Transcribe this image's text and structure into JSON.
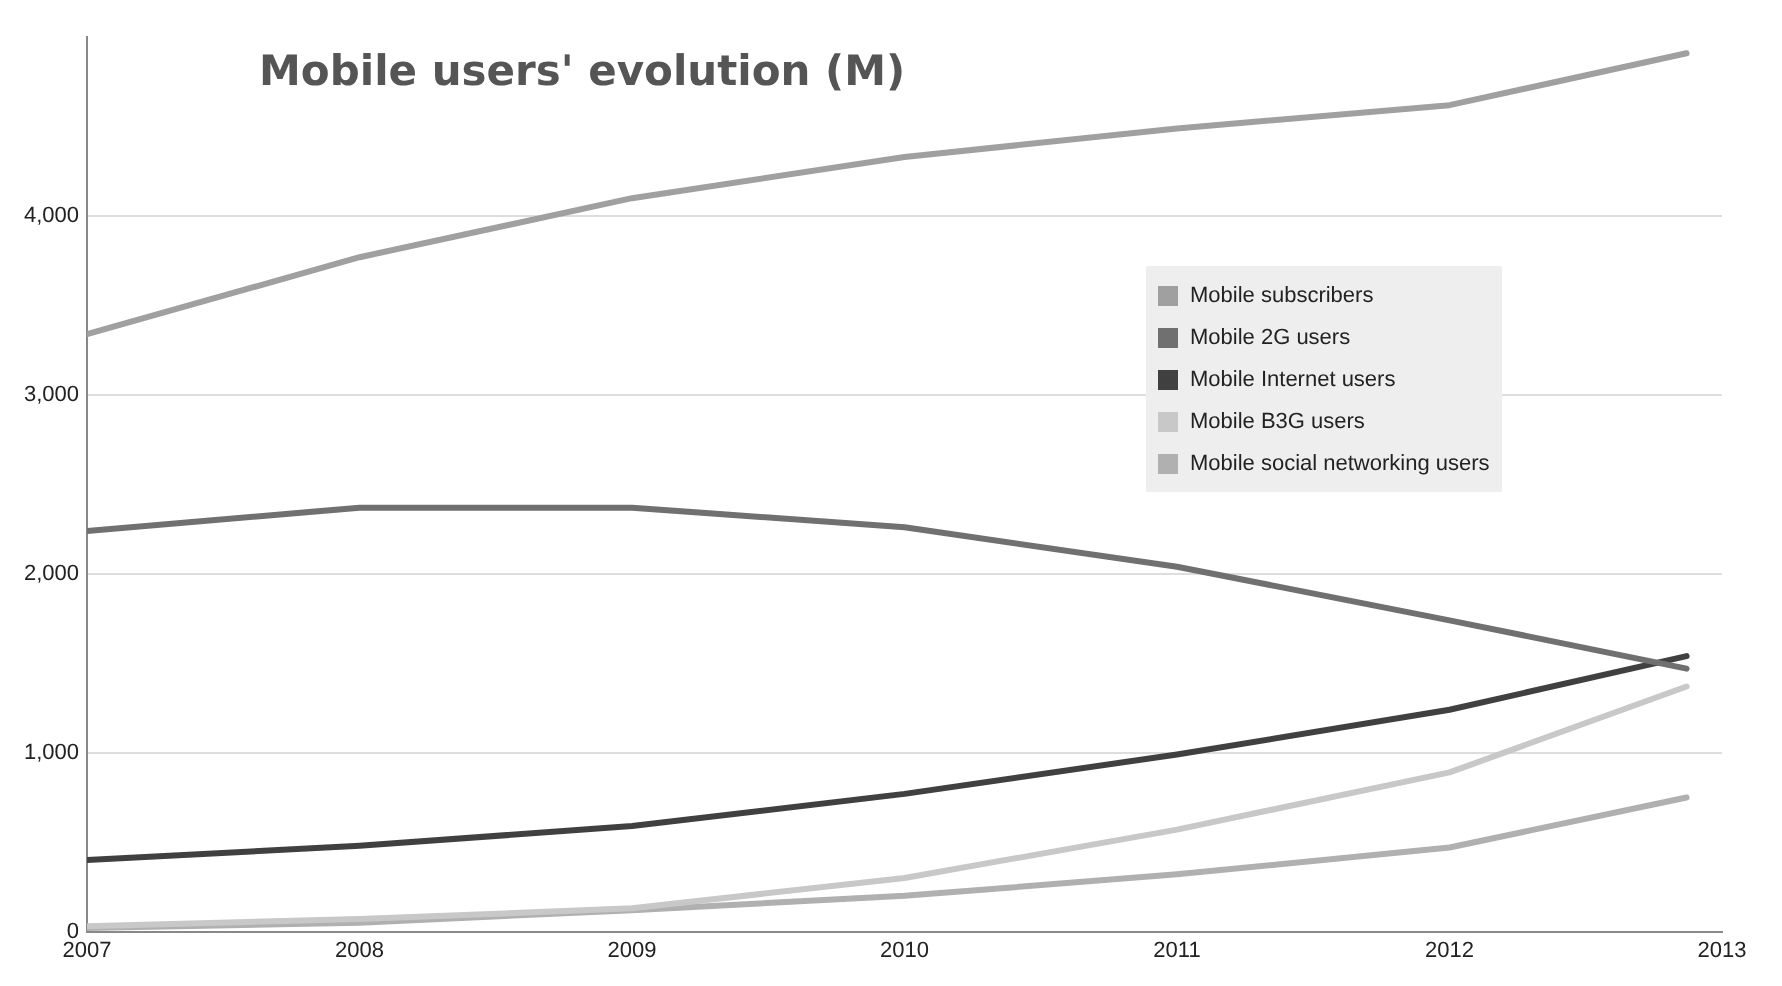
{
  "chart_data": {
    "type": "line",
    "title": "Mobile users' evolution (M)",
    "x": [
      2007,
      2008,
      2009,
      2010,
      2011,
      2012,
      2012.87
    ],
    "xlim": [
      2007,
      2013
    ],
    "xticks": [
      2007,
      2008,
      2009,
      2010,
      2011,
      2012,
      2013
    ],
    "ylim": [
      0,
      5000
    ],
    "yticks": [
      {
        "value": 0,
        "label": "0"
      },
      {
        "value": 1000,
        "label": "1,000"
      },
      {
        "value": 2000,
        "label": "2,000"
      },
      {
        "value": 3000,
        "label": "3,000"
      },
      {
        "value": 4000,
        "label": "4,000"
      }
    ],
    "grid": "y",
    "legend": "top right",
    "marker": "none",
    "line_style": "solid",
    "series": [
      {
        "name": "Mobile subscribers",
        "color": "#a0a0a0",
        "values": [
          3340,
          3770,
          4100,
          4330,
          4490,
          4620,
          4910
        ]
      },
      {
        "name": "Mobile 2G users",
        "color": "#707070",
        "values": [
          2240,
          2370,
          2370,
          2260,
          2040,
          1740,
          1470
        ]
      },
      {
        "name": "Mobile Internet users",
        "color": "#404040",
        "values": [
          400,
          480,
          590,
          770,
          990,
          1240,
          1540
        ]
      },
      {
        "name": "Mobile B3G users",
        "color": "#c8c8c8",
        "values": [
          30,
          70,
          130,
          300,
          570,
          890,
          1370
        ]
      },
      {
        "name": "Mobile social networking users",
        "color": "#b0b0b0",
        "values": [
          20,
          50,
          120,
          200,
          320,
          470,
          750
        ]
      }
    ]
  }
}
